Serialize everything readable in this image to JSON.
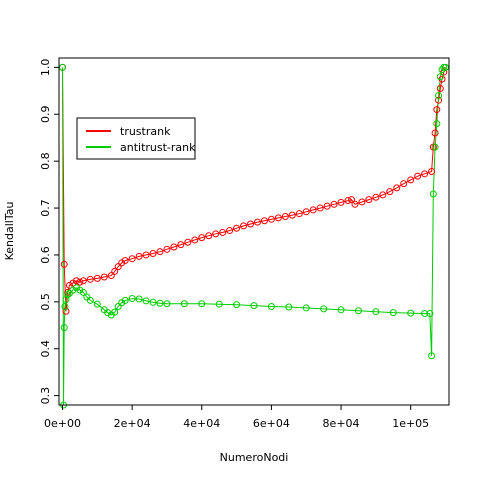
{
  "chart_data": {
    "type": "scatter",
    "title": "",
    "xlabel": "NumeroNodi",
    "ylabel": "KendallTau",
    "xlim": [
      -1000,
      111000
    ],
    "ylim": [
      0.28,
      1.02
    ],
    "x_ticks": [
      0,
      20000,
      40000,
      60000,
      80000,
      100000
    ],
    "x_tick_labels": [
      "0e+00",
      "2e+04",
      "4e+04",
      "6e+04",
      "8e+04",
      "1e+05"
    ],
    "y_ticks": [
      0.3,
      0.4,
      0.5,
      0.6,
      0.7,
      0.8,
      0.9,
      1.0
    ],
    "y_tick_labels": [
      "0.3",
      "0.4",
      "0.5",
      "0.6",
      "0.7",
      "0.8",
      "0.9",
      "1.0"
    ],
    "grid": false,
    "legend_position": "top-left",
    "series": [
      {
        "name": "trustrank",
        "color": "#ff0000",
        "marker": "open-circle",
        "line": true,
        "x": [
          0,
          500,
          1000,
          1500,
          2000,
          3000,
          4000,
          5000,
          6000,
          8000,
          10000,
          12000,
          14000,
          15000,
          16000,
          17000,
          18000,
          20000,
          22000,
          24000,
          26000,
          28000,
          30000,
          32000,
          34000,
          36000,
          38000,
          40000,
          42000,
          44000,
          46000,
          48000,
          50000,
          52000,
          54000,
          56000,
          58000,
          60000,
          62000,
          64000,
          66000,
          68000,
          70000,
          72000,
          74000,
          76000,
          78000,
          80000,
          82000,
          83000,
          84000,
          86000,
          88000,
          90000,
          92000,
          94000,
          96000,
          98000,
          100000,
          102000,
          104000,
          106000,
          106500,
          107000,
          107500,
          108000,
          108500,
          109000,
          109500,
          110000
        ],
        "y": [
          1.0,
          0.58,
          0.48,
          0.52,
          0.535,
          0.54,
          0.545,
          0.542,
          0.545,
          0.548,
          0.55,
          0.553,
          0.556,
          0.565,
          0.575,
          0.583,
          0.588,
          0.592,
          0.597,
          0.6,
          0.603,
          0.607,
          0.612,
          0.617,
          0.622,
          0.627,
          0.632,
          0.637,
          0.641,
          0.645,
          0.648,
          0.652,
          0.657,
          0.662,
          0.666,
          0.67,
          0.673,
          0.676,
          0.679,
          0.682,
          0.685,
          0.688,
          0.692,
          0.696,
          0.7,
          0.704,
          0.708,
          0.712,
          0.716,
          0.718,
          0.708,
          0.713,
          0.718,
          0.723,
          0.728,
          0.735,
          0.743,
          0.752,
          0.76,
          0.768,
          0.773,
          0.778,
          0.83,
          0.86,
          0.91,
          0.93,
          0.955,
          0.975,
          0.99,
          1.0
        ]
      },
      {
        "name": "antitrust-rank",
        "color": "#00cc00",
        "marker": "open-circle",
        "line": true,
        "x": [
          0,
          300,
          500,
          700,
          1000,
          1500,
          2000,
          3000,
          4000,
          5000,
          6000,
          7000,
          8000,
          10000,
          12000,
          13000,
          14000,
          15000,
          16000,
          17000,
          18000,
          20000,
          22000,
          24000,
          26000,
          28000,
          30000,
          35000,
          40000,
          45000,
          50000,
          55000,
          60000,
          65000,
          70000,
          75000,
          80000,
          85000,
          90000,
          95000,
          100000,
          104000,
          105500,
          106000,
          106500,
          107000,
          107500,
          108000,
          108500,
          109000,
          109500,
          110000
        ],
        "y": [
          1.0,
          0.28,
          0.445,
          0.49,
          0.505,
          0.515,
          0.518,
          0.525,
          0.53,
          0.525,
          0.52,
          0.51,
          0.503,
          0.495,
          0.483,
          0.477,
          0.472,
          0.478,
          0.49,
          0.498,
          0.503,
          0.507,
          0.506,
          0.502,
          0.499,
          0.497,
          0.496,
          0.496,
          0.496,
          0.495,
          0.494,
          0.492,
          0.49,
          0.489,
          0.487,
          0.485,
          0.483,
          0.481,
          0.479,
          0.477,
          0.476,
          0.475,
          0.475,
          0.385,
          0.73,
          0.83,
          0.88,
          0.94,
          0.98,
          0.995,
          1.0,
          1.0
        ]
      }
    ]
  }
}
